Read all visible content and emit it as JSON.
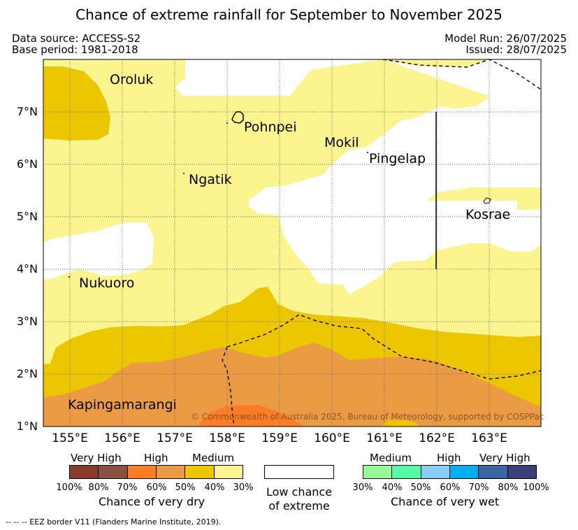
{
  "title": "Chance of extreme rainfall for September to November 2025",
  "meta": {
    "data_source": "Data source: ACCESS-S2",
    "base_period": "Base period: 1981-2018",
    "model_run": "Model Run: 26/07/2025",
    "issued": "Issued: 28/07/2025"
  },
  "map": {
    "lat_labels": [
      "7°N",
      "6°N",
      "5°N",
      "4°N",
      "3°N",
      "2°N",
      "1°N"
    ],
    "lon_labels": [
      "155°E",
      "156°E",
      "157°E",
      "158°E",
      "159°E",
      "160°E",
      "161°E",
      "162°E",
      "163°E"
    ],
    "places": [
      "Oroluk",
      "Pohnpei",
      "Mokil",
      "Pingelap",
      "Ngatik",
      "Kosrae",
      "Nukuoro",
      "Kapingamarangi"
    ],
    "copyright": "© Commonwealth of Australia 2025, Bureau of Meteorology, supported by COSPPac",
    "colors": {
      "dry_30_40": "#fbf48f",
      "dry_40_50": "#ecc600",
      "dry_50_60": "#ec9b45",
      "dry_60_70": "#fb7e26",
      "none": "#ffffff"
    }
  },
  "legend": {
    "dry": {
      "title": "Chance of very dry",
      "categories": [
        "Very High",
        "High",
        "Medium"
      ],
      "percents": [
        "100%",
        "80%",
        "70%",
        "60%",
        "50%",
        "40%",
        "30%"
      ],
      "colors": [
        "#8b3a2e",
        "#8a5040",
        "#fb7e26",
        "#ec9b45",
        "#ecc600",
        "#fbf48f"
      ]
    },
    "low": {
      "line1": "Low chance",
      "line2": "of extreme"
    },
    "wet": {
      "title": "Chance of very wet",
      "categories": [
        "Medium",
        "High",
        "Very High"
      ],
      "percents": [
        "30%",
        "40%",
        "50%",
        "60%",
        "70%",
        "80%",
        "100%"
      ],
      "colors": [
        "#98fa98",
        "#55faa8",
        "#87cefa",
        "#00b0ee",
        "#3b64a2",
        "#3d3d7a"
      ]
    }
  },
  "footnote": "--  --  -- EEZ border V11 (Flanders Marine Institute, 2019)."
}
